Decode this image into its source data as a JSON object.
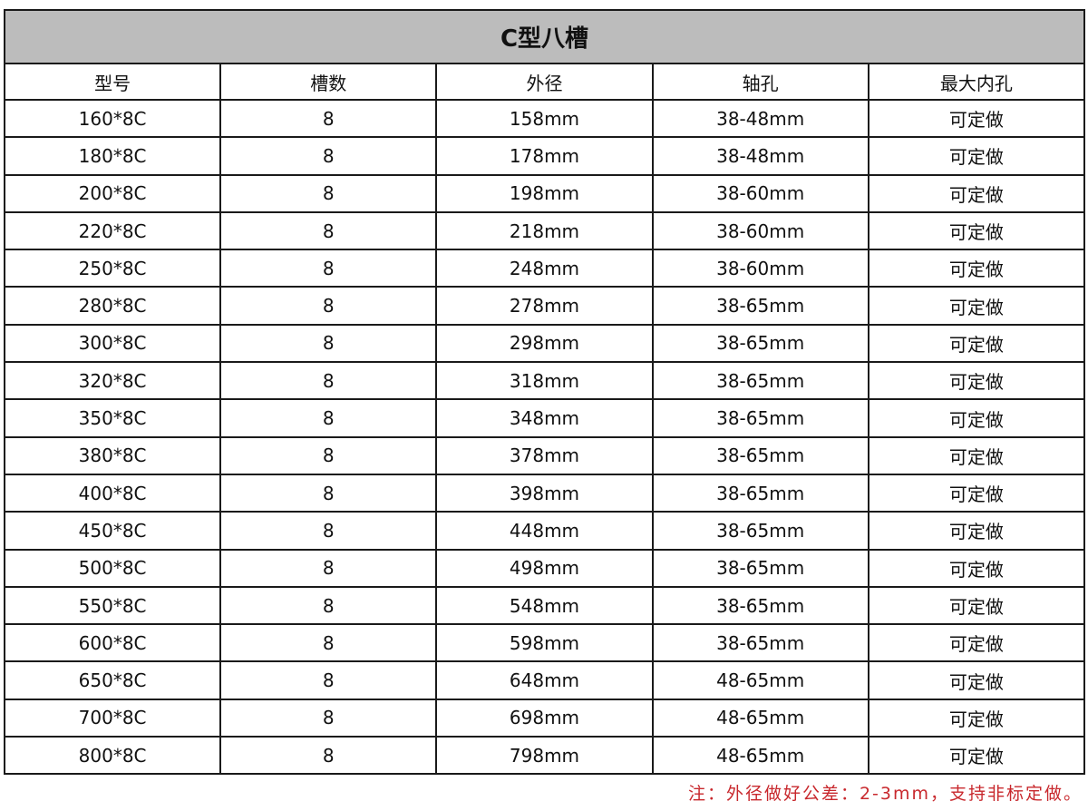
{
  "title": "C型八槽",
  "columns": [
    "型号",
    "槽数",
    "外径",
    "轴孔",
    "最大内孔"
  ],
  "rows": [
    [
      "160*8C",
      "8",
      "158mm",
      "38-48mm",
      "可定做"
    ],
    [
      "180*8C",
      "8",
      "178mm",
      "38-48mm",
      "可定做"
    ],
    [
      "200*8C",
      "8",
      "198mm",
      "38-60mm",
      "可定做"
    ],
    [
      "220*8C",
      "8",
      "218mm",
      "38-60mm",
      "可定做"
    ],
    [
      "250*8C",
      "8",
      "248mm",
      "38-60mm",
      "可定做"
    ],
    [
      "280*8C",
      "8",
      "278mm",
      "38-65mm",
      "可定做"
    ],
    [
      "300*8C",
      "8",
      "298mm",
      "38-65mm",
      "可定做"
    ],
    [
      "320*8C",
      "8",
      "318mm",
      "38-65mm",
      "可定做"
    ],
    [
      "350*8C",
      "8",
      "348mm",
      "38-65mm",
      "可定做"
    ],
    [
      "380*8C",
      "8",
      "378mm",
      "38-65mm",
      "可定做"
    ],
    [
      "400*8C",
      "8",
      "398mm",
      "38-65mm",
      "可定做"
    ],
    [
      "450*8C",
      "8",
      "448mm",
      "38-65mm",
      "可定做"
    ],
    [
      "500*8C",
      "8",
      "498mm",
      "38-65mm",
      "可定做"
    ],
    [
      "550*8C",
      "8",
      "548mm",
      "38-65mm",
      "可定做"
    ],
    [
      "600*8C",
      "8",
      "598mm",
      "38-65mm",
      "可定做"
    ],
    [
      "650*8C",
      "8",
      "648mm",
      "48-65mm",
      "可定做"
    ],
    [
      "700*8C",
      "8",
      "698mm",
      "48-65mm",
      "可定做"
    ],
    [
      "800*8C",
      "8",
      "798mm",
      "48-65mm",
      "可定做"
    ]
  ],
  "note": "注：外径做好公差：2-3mm，支持非标定做。",
  "colors": {
    "title_bg": "#bcbcbc",
    "note": "#c8282d",
    "border": "#1a1a1a"
  }
}
